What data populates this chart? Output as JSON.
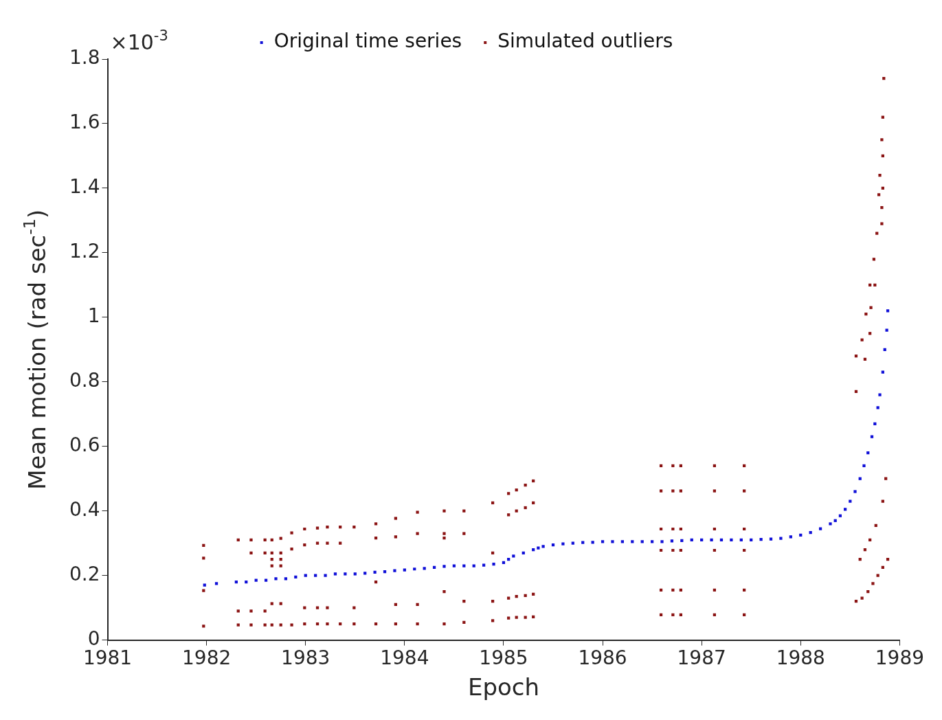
{
  "chart_data": {
    "type": "scatter",
    "xlabel": "Epoch",
    "ylabel": "Mean motion (rad sec$^{-1}$)",
    "annotations": [
      "×10$^{-3}$"
    ],
    "xlim": [
      1981,
      1989
    ],
    "xticks": [
      1981,
      1982,
      1983,
      1984,
      1985,
      1986,
      1987,
      1988,
      1989
    ],
    "ylim": [
      0,
      1.8
    ],
    "yticks": [
      0,
      0.2,
      0.4,
      0.6,
      0.8,
      1,
      1.2,
      1.4,
      1.6,
      1.8
    ],
    "grid": false,
    "legend": "top",
    "marker": "square",
    "series": [
      {
        "name": "Original time series",
        "color": "#1010d8",
        "x": [
          1981.98,
          1982.1,
          1982.3,
          1982.4,
          1982.5,
          1982.6,
          1982.7,
          1982.8,
          1982.9,
          1983,
          1983.1,
          1983.2,
          1983.3,
          1983.4,
          1983.5,
          1983.6,
          1983.7,
          1983.8,
          1983.9,
          1984,
          1984.1,
          1984.2,
          1984.3,
          1984.4,
          1984.5,
          1984.6,
          1984.7,
          1984.8,
          1984.9,
          1985,
          1985.05,
          1985.1,
          1985.2,
          1985.3,
          1985.35,
          1985.4,
          1985.5,
          1985.6,
          1985.7,
          1985.8,
          1985.9,
          1986,
          1986.1,
          1986.2,
          1986.3,
          1986.4,
          1986.5,
          1986.6,
          1986.7,
          1986.8,
          1986.9,
          1987,
          1987.1,
          1987.2,
          1987.3,
          1987.4,
          1987.5,
          1987.6,
          1987.7,
          1987.8,
          1987.9,
          1988,
          1988.1,
          1988.2,
          1988.3,
          1988.35,
          1988.4,
          1988.45,
          1988.5,
          1988.55,
          1988.6,
          1988.64,
          1988.68,
          1988.72,
          1988.75,
          1988.78,
          1988.8,
          1988.83,
          1988.85,
          1988.87,
          1988.88
        ],
        "values": [
          0.17,
          0.175,
          0.18,
          0.18,
          0.185,
          0.185,
          0.19,
          0.19,
          0.195,
          0.2,
          0.2,
          0.2,
          0.205,
          0.205,
          0.205,
          0.207,
          0.21,
          0.212,
          0.215,
          0.217,
          0.22,
          0.222,
          0.225,
          0.228,
          0.23,
          0.23,
          0.23,
          0.232,
          0.235,
          0.24,
          0.25,
          0.26,
          0.27,
          0.28,
          0.285,
          0.29,
          0.295,
          0.298,
          0.3,
          0.302,
          0.303,
          0.305,
          0.305,
          0.305,
          0.305,
          0.305,
          0.305,
          0.305,
          0.307,
          0.308,
          0.31,
          0.31,
          0.31,
          0.31,
          0.31,
          0.31,
          0.31,
          0.312,
          0.313,
          0.315,
          0.32,
          0.325,
          0.333,
          0.345,
          0.36,
          0.37,
          0.385,
          0.405,
          0.43,
          0.46,
          0.5,
          0.54,
          0.58,
          0.63,
          0.67,
          0.72,
          0.76,
          0.83,
          0.9,
          0.96,
          1.02
        ]
      },
      {
        "name": "Simulated outliers",
        "color": "#8b1414",
        "x": [
          1981.97,
          1981.97,
          1981.97,
          1981.97,
          1982.32,
          1982.32,
          1982.32,
          1982.45,
          1982.45,
          1982.45,
          1982.45,
          1982.59,
          1982.59,
          1982.59,
          1982.59,
          1982.66,
          1982.66,
          1982.66,
          1982.66,
          1982.66,
          1982.66,
          1982.75,
          1982.75,
          1982.75,
          1982.75,
          1982.75,
          1982.75,
          1982.86,
          1982.86,
          1982.86,
          1982.99,
          1982.99,
          1982.99,
          1982.99,
          1983.12,
          1983.12,
          1983.12,
          1983.12,
          1983.22,
          1983.22,
          1983.22,
          1983.22,
          1983.35,
          1983.35,
          1983.35,
          1983.49,
          1983.49,
          1983.49,
          1983.71,
          1983.71,
          1983.71,
          1983.71,
          1983.91,
          1983.91,
          1983.91,
          1983.91,
          1984.13,
          1984.13,
          1984.13,
          1984.13,
          1984.4,
          1984.4,
          1984.4,
          1984.4,
          1984.4,
          1984.6,
          1984.6,
          1984.6,
          1984.6,
          1984.89,
          1984.89,
          1984.89,
          1984.89,
          1985.05,
          1985.05,
          1985.05,
          1985.05,
          1985.13,
          1985.13,
          1985.13,
          1985.13,
          1985.22,
          1985.22,
          1985.22,
          1985.22,
          1985.3,
          1985.3,
          1985.3,
          1985.3,
          1986.59,
          1986.59,
          1986.59,
          1986.59,
          1986.59,
          1986.59,
          1986.71,
          1986.71,
          1986.71,
          1986.71,
          1986.71,
          1986.71,
          1986.79,
          1986.79,
          1986.79,
          1986.79,
          1986.79,
          1986.79,
          1987.13,
          1987.13,
          1987.13,
          1987.13,
          1987.13,
          1987.13,
          1987.43,
          1987.43,
          1987.43,
          1987.43,
          1987.43,
          1987.43,
          1988.56,
          1988.62,
          1988.68,
          1988.73,
          1988.78,
          1988.83,
          1988.88,
          1988.6,
          1988.65,
          1988.7,
          1988.76,
          1988.83,
          1988.86,
          1988.84,
          1988.83,
          1988.82,
          1988.83,
          1988.8,
          1988.83,
          1988.79,
          1988.82,
          1988.82,
          1988.77,
          1988.74,
          1988.7,
          1988.75,
          1988.66,
          1988.71,
          1988.62,
          1988.7,
          1988.56,
          1988.65,
          1988.56
        ],
        "values": [
          0.293,
          0.254,
          0.153,
          0.043,
          0.31,
          0.09,
          0.047,
          0.31,
          0.27,
          0.09,
          0.047,
          0.31,
          0.27,
          0.09,
          0.047,
          0.31,
          0.27,
          0.25,
          0.23,
          0.113,
          0.047,
          0.315,
          0.27,
          0.25,
          0.23,
          0.113,
          0.047,
          0.332,
          0.282,
          0.047,
          0.344,
          0.295,
          0.1,
          0.05,
          0.347,
          0.3,
          0.1,
          0.05,
          0.35,
          0.3,
          0.1,
          0.05,
          0.35,
          0.3,
          0.05,
          0.35,
          0.1,
          0.05,
          0.36,
          0.316,
          0.18,
          0.05,
          0.377,
          0.32,
          0.11,
          0.05,
          0.396,
          0.33,
          0.11,
          0.05,
          0.4,
          0.33,
          0.316,
          0.15,
          0.05,
          0.4,
          0.33,
          0.12,
          0.055,
          0.425,
          0.27,
          0.12,
          0.06,
          0.454,
          0.388,
          0.13,
          0.068,
          0.465,
          0.4,
          0.135,
          0.07,
          0.48,
          0.41,
          0.138,
          0.07,
          0.493,
          0.425,
          0.142,
          0.072,
          0.54,
          0.462,
          0.344,
          0.278,
          0.155,
          0.078,
          0.54,
          0.462,
          0.344,
          0.278,
          0.155,
          0.078,
          0.54,
          0.462,
          0.344,
          0.278,
          0.155,
          0.078,
          0.54,
          0.462,
          0.344,
          0.278,
          0.155,
          0.078,
          0.54,
          0.462,
          0.344,
          0.278,
          0.155,
          0.078,
          0.12,
          0.13,
          0.15,
          0.175,
          0.2,
          0.225,
          0.25,
          0.25,
          0.28,
          0.31,
          0.355,
          0.43,
          0.5,
          1.74,
          1.62,
          1.55,
          1.5,
          1.44,
          1.4,
          1.38,
          1.34,
          1.29,
          1.26,
          1.18,
          1.1,
          1.1,
          1.01,
          1.03,
          0.93,
          0.95,
          0.88,
          0.87,
          0.77
        ]
      }
    ]
  }
}
